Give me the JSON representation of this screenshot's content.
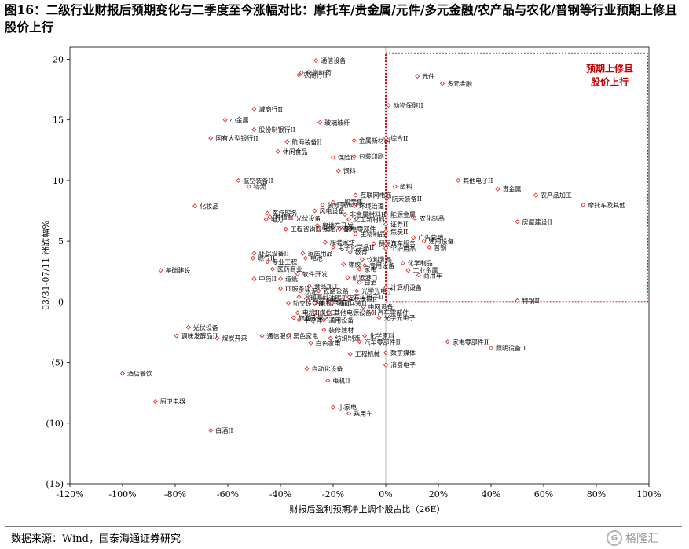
{
  "title": "图16：二级行业财报后预期变化与二季度至今涨幅对比：摩托车/贵金属/元件/多元金融/农产品与农化/普钢等行业预期上修且股价上行",
  "source": "数据来源：Wind，国泰海通证券研究",
  "watermark": "格隆汇",
  "chart_data": {
    "type": "scatter",
    "xlabel": "财报后盈利预期净上调个股占比（26E）",
    "ylabel": "03/31-07/11 涨跌幅%",
    "xlim": [
      -1.2,
      1.0
    ],
    "ylim": [
      -15,
      21
    ],
    "xticks": [
      -1.2,
      -1.0,
      -0.8,
      -0.6,
      -0.4,
      -0.2,
      0,
      0.2,
      0.4,
      0.6,
      0.8,
      1.0
    ],
    "xtick_labels": [
      "-120%",
      "-100%",
      "-80%",
      "-60%",
      "-40%",
      "-20%",
      "0%",
      "20%",
      "40%",
      "60%",
      "80%",
      "100%"
    ],
    "yticks": [
      20,
      15,
      10,
      5,
      0,
      -5,
      -10,
      -15
    ],
    "ytick_labels": [
      "20",
      "15",
      "10",
      "5",
      "0",
      "(5)",
      "(10)",
      "(15)"
    ],
    "marker_color": "#e03030",
    "highlight": {
      "label_line1": "预期上修且",
      "label_line2": "股价上行",
      "x_range": [
        0,
        1.0
      ],
      "y_range": [
        0,
        20.5
      ],
      "color": "#c00000"
    },
    "points": [
      {
        "name": "通信设备",
        "x": -0.265,
        "y": 19.9
      },
      {
        "name": "农商行II",
        "x": -0.33,
        "y": 18.7
      },
      {
        "name": "化学制药",
        "x": -0.32,
        "y": 18.9
      },
      {
        "name": "元件",
        "x": 0.12,
        "y": 18.6
      },
      {
        "name": "多元金融",
        "x": 0.215,
        "y": 18.0
      },
      {
        "name": "动物保健II",
        "x": 0.01,
        "y": 16.2
      },
      {
        "name": "城商行II",
        "x": -0.5,
        "y": 15.9
      },
      {
        "name": "小金属",
        "x": -0.61,
        "y": 15.0
      },
      {
        "name": "玻璃玻纤",
        "x": -0.25,
        "y": 14.8
      },
      {
        "name": "股份制银行II",
        "x": -0.5,
        "y": 14.2
      },
      {
        "name": "国有大型银行II",
        "x": -0.665,
        "y": 13.5
      },
      {
        "name": "航海装备II",
        "x": -0.375,
        "y": 13.2
      },
      {
        "name": "金属新材料",
        "x": -0.12,
        "y": 13.3
      },
      {
        "name": "综合II",
        "x": 0.0,
        "y": 13.5
      },
      {
        "name": "休闲食品",
        "x": -0.41,
        "y": 12.4
      },
      {
        "name": "保险II",
        "x": -0.2,
        "y": 11.9
      },
      {
        "name": "包装印刷",
        "x": -0.12,
        "y": 12.0
      },
      {
        "name": "饲料",
        "x": -0.18,
        "y": 10.8
      },
      {
        "name": "航空装备II",
        "x": -0.56,
        "y": 10.0
      },
      {
        "name": "物流",
        "x": -0.52,
        "y": 9.5
      },
      {
        "name": "其他电子II",
        "x": 0.275,
        "y": 10.0
      },
      {
        "name": "塑料",
        "x": 0.035,
        "y": 9.5
      },
      {
        "name": "贵金属",
        "x": 0.425,
        "y": 9.3
      },
      {
        "name": "农产品加工",
        "x": 0.57,
        "y": 8.8
      },
      {
        "name": "摩托车及其他",
        "x": 0.75,
        "y": 8.0
      },
      {
        "name": "化妆品",
        "x": -0.725,
        "y": 7.9
      },
      {
        "name": "互联网电商",
        "x": -0.115,
        "y": 8.8
      },
      {
        "name": "一般零售",
        "x": -0.2,
        "y": 8.2
      },
      {
        "name": "航天装备II",
        "x": 0.005,
        "y": 8.5
      },
      {
        "name": "装修装饰II",
        "x": -0.24,
        "y": 8.0
      },
      {
        "name": "环境治理",
        "x": -0.12,
        "y": 7.9
      },
      {
        "name": "风电设备",
        "x": -0.27,
        "y": 7.5
      },
      {
        "name": "医疗服务",
        "x": -0.45,
        "y": 7.3
      },
      {
        "name": "能源金属",
        "x": 0.0,
        "y": 7.2
      },
      {
        "name": "非金属材料II",
        "x": -0.155,
        "y": 7.2
      },
      {
        "name": "种植业",
        "x": -0.44,
        "y": 7.0
      },
      {
        "name": "电力",
        "x": -0.455,
        "y": 6.8
      },
      {
        "name": "光伏设备",
        "x": -0.36,
        "y": 6.9
      },
      {
        "name": "农化制品",
        "x": 0.11,
        "y": 6.9
      },
      {
        "name": "化工新材料",
        "x": -0.14,
        "y": 6.8
      },
      {
        "name": "证券II",
        "x": 0.0,
        "y": 6.4
      },
      {
        "name": "房地产开发",
        "x": -0.26,
        "y": 6.3
      },
      {
        "name": "房屋建设II",
        "x": 0.5,
        "y": 6.6
      },
      {
        "name": "工程咨询服务II",
        "x": -0.38,
        "y": 6.0
      },
      {
        "name": "房地产服务",
        "x": -0.255,
        "y": 6.0
      },
      {
        "name": "家电零部件",
        "x": -0.175,
        "y": 6.0
      },
      {
        "name": "焦炭II",
        "x": 0.0,
        "y": 5.8
      },
      {
        "name": "生物制品",
        "x": -0.115,
        "y": 5.6
      },
      {
        "name": "广告营销",
        "x": 0.105,
        "y": 5.3
      },
      {
        "name": "服装家纺",
        "x": -0.23,
        "y": 4.9
      },
      {
        "name": "贸易II",
        "x": -0.045,
        "y": 4.8
      },
      {
        "name": "汽车服务",
        "x": 0.0,
        "y": 4.8
      },
      {
        "name": "通用设备",
        "x": 0.145,
        "y": 5.0
      },
      {
        "name": "电子化学品II",
        "x": -0.2,
        "y": 4.5
      },
      {
        "name": "个护用品",
        "x": 0.0,
        "y": 4.4
      },
      {
        "name": "普钢",
        "x": 0.165,
        "y": 4.5
      },
      {
        "name": "环保设备II",
        "x": -0.5,
        "y": 4.0
      },
      {
        "name": "家居用品",
        "x": -0.315,
        "y": 4.0
      },
      {
        "name": "教育",
        "x": -0.135,
        "y": 4.1
      },
      {
        "name": "燃气II",
        "x": -0.505,
        "y": 3.6
      },
      {
        "name": "电池",
        "x": -0.305,
        "y": 3.6
      },
      {
        "name": "饮料乳品",
        "x": -0.09,
        "y": 3.5
      },
      {
        "name": "专业工程",
        "x": -0.45,
        "y": 3.3
      },
      {
        "name": "化学制品",
        "x": 0.065,
        "y": 3.2
      },
      {
        "name": "橡胶",
        "x": -0.16,
        "y": 3.1
      },
      {
        "name": "专用设备",
        "x": -0.08,
        "y": 3.0
      },
      {
        "name": "医药商业",
        "x": -0.43,
        "y": 2.7
      },
      {
        "name": "工业金属",
        "x": 0.085,
        "y": 2.6
      },
      {
        "name": "家电",
        "x": -0.1,
        "y": 2.7
      },
      {
        "name": "基础建设",
        "x": -0.855,
        "y": 2.6
      },
      {
        "name": "软件开发",
        "x": -0.335,
        "y": 2.3
      },
      {
        "name": "商用车",
        "x": 0.125,
        "y": 2.2
      },
      {
        "name": "中药II",
        "x": -0.5,
        "y": 1.9
      },
      {
        "name": "造纸",
        "x": -0.4,
        "y": 1.9
      },
      {
        "name": "航运港口",
        "x": -0.145,
        "y": 2.0
      },
      {
        "name": "白酒",
        "x": -0.1,
        "y": 1.6
      },
      {
        "name": "食品加工",
        "x": -0.29,
        "y": 1.3
      },
      {
        "name": "IT服务II",
        "x": -0.4,
        "y": 1.1
      },
      {
        "name": "水泥",
        "x": -0.325,
        "y": 0.9
      },
      {
        "name": "铁路公路",
        "x": -0.255,
        "y": 0.9
      },
      {
        "name": "光学光电子",
        "x": -0.11,
        "y": 0.9
      },
      {
        "name": "计算机设备",
        "x": 0.0,
        "y": 1.2
      },
      {
        "name": "冶钢原料",
        "x": -0.33,
        "y": 0.4
      },
      {
        "name": "油服工程",
        "x": -0.235,
        "y": 0.3
      },
      {
        "name": "专业连锁II",
        "x": -0.165,
        "y": 0.2
      },
      {
        "name": "军工电子II",
        "x": -0.14,
        "y": 0.4
      },
      {
        "name": "航空机场",
        "x": -0.295,
        "y": 0.1
      },
      {
        "name": "轨交设备II",
        "x": -0.37,
        "y": -0.1
      },
      {
        "name": "电视广播II",
        "x": -0.27,
        "y": -0.1
      },
      {
        "name": "地面兵装II",
        "x": -0.205,
        "y": -0.1
      },
      {
        "name": "电网设备",
        "x": -0.085,
        "y": -0.4
      },
      {
        "name": "特钢II",
        "x": 0.5,
        "y": 0.1
      },
      {
        "name": "电机II",
        "x": -0.335,
        "y": -0.9
      },
      {
        "name": "煤化工",
        "x": -0.27,
        "y": -0.9
      },
      {
        "name": "其他电源设备II",
        "x": -0.215,
        "y": -0.9
      },
      {
        "name": "汽车零部件",
        "x": -0.05,
        "y": -0.9
      },
      {
        "name": "旅游及景区",
        "x": -0.35,
        "y": -1.3
      },
      {
        "name": "半导体",
        "x": -0.33,
        "y": -1.5
      },
      {
        "name": "通用设备",
        "x": -0.235,
        "y": -1.5
      },
      {
        "name": "光学光电子",
        "x": -0.025,
        "y": -1.3
      },
      {
        "name": "光伏设备",
        "x": -0.75,
        "y": -2.1
      },
      {
        "name": "调味发酵品II",
        "x": -0.795,
        "y": -2.8
      },
      {
        "name": "煤炭开采",
        "x": -0.64,
        "y": -3.0
      },
      {
        "name": "装修建材",
        "x": -0.235,
        "y": -2.3
      },
      {
        "name": "通信服务",
        "x": -0.47,
        "y": -2.8
      },
      {
        "name": "黑色家电",
        "x": -0.37,
        "y": -2.8
      },
      {
        "name": "化学原料",
        "x": -0.08,
        "y": -2.8
      },
      {
        "name": "纺织制造",
        "x": -0.21,
        "y": -3.0
      },
      {
        "name": "白色家电",
        "x": -0.285,
        "y": -3.4
      },
      {
        "name": "汽车零部件II",
        "x": -0.1,
        "y": -3.3
      },
      {
        "name": "家电零部件II",
        "x": 0.235,
        "y": -3.3
      },
      {
        "name": "照明设备II",
        "x": 0.4,
        "y": -3.8
      },
      {
        "name": "数字媒体",
        "x": 0.0,
        "y": -4.2
      },
      {
        "name": "工程机械",
        "x": -0.135,
        "y": -4.3
      },
      {
        "name": "消费电子",
        "x": 0.0,
        "y": -5.2
      },
      {
        "name": "自动化设备",
        "x": -0.3,
        "y": -5.5
      },
      {
        "name": "酒店餐饮",
        "x": -1.0,
        "y": -5.9
      },
      {
        "name": "电机II",
        "x": -0.22,
        "y": -6.5
      },
      {
        "name": "厨卫电器",
        "x": -0.875,
        "y": -8.2
      },
      {
        "name": "小家电",
        "x": -0.2,
        "y": -8.7
      },
      {
        "name": "乘用车",
        "x": -0.14,
        "y": -9.2
      },
      {
        "name": "白酒II",
        "x": -0.665,
        "y": -10.6
      }
    ]
  }
}
